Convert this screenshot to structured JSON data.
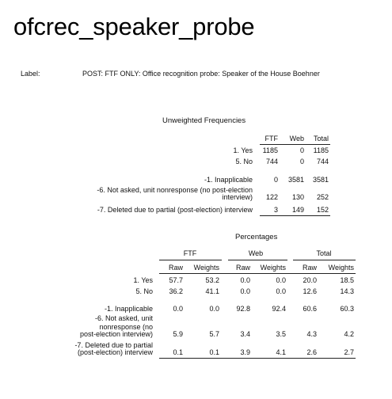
{
  "title": "ofcrec_speaker_probe",
  "label": {
    "key": "Label:",
    "value": "POST: FTF ONLY: Office recognition probe: Speaker of the House Boehner"
  },
  "unweighted": {
    "title": "Unweighted Frequencies",
    "columns": [
      "FTF",
      "Web",
      "Total"
    ],
    "rows": [
      {
        "label": [
          "1. Yes"
        ],
        "values": [
          "1185",
          "0",
          "1185"
        ]
      },
      {
        "label": [
          "5. No"
        ],
        "values": [
          "744",
          "0",
          "744"
        ]
      },
      {
        "label": [
          "-1. Inapplicable"
        ],
        "values": [
          "0",
          "3581",
          "3581"
        ]
      },
      {
        "label": [
          "-6. Not asked, unit nonresponse (no post-election",
          "interview)"
        ],
        "values": [
          "122",
          "130",
          "252"
        ]
      },
      {
        "label": [
          "-7. Deleted due to partial (post-election) interview"
        ],
        "values": [
          "3",
          "149",
          "152"
        ]
      }
    ]
  },
  "percentages": {
    "title": "Percentages",
    "groups": [
      "FTF",
      "Web",
      "Total"
    ],
    "subcolumns": [
      "Raw",
      "Weights",
      "Raw",
      "Weights",
      "Raw",
      "Weights"
    ],
    "rows": [
      {
        "label": [
          "1. Yes"
        ],
        "values": [
          "57.7",
          "53.2",
          "0.0",
          "0.0",
          "20.0",
          "18.5"
        ]
      },
      {
        "label": [
          "5. No"
        ],
        "values": [
          "36.2",
          "41.1",
          "0.0",
          "0.0",
          "12.6",
          "14.3"
        ]
      },
      {
        "label": [
          "-1. Inapplicable"
        ],
        "values": [
          "0.0",
          "0.0",
          "92.8",
          "92.4",
          "60.6",
          "60.3"
        ]
      },
      {
        "label": [
          "-6. Not asked, unit",
          "nonresponse (no",
          "post-election interview)"
        ],
        "values": [
          "5.9",
          "5.7",
          "3.4",
          "3.5",
          "4.3",
          "4.2"
        ]
      },
      {
        "label": [
          "-7. Deleted due to partial",
          "(post-election) interview"
        ],
        "values": [
          "0.1",
          "0.1",
          "3.9",
          "4.1",
          "2.6",
          "2.7"
        ]
      }
    ]
  }
}
